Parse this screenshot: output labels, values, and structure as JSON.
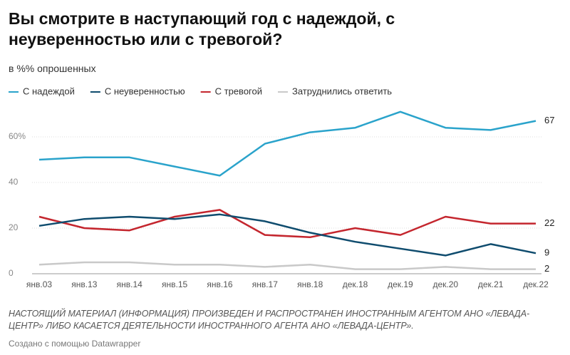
{
  "chart_data": {
    "type": "line",
    "title": "Вы смотрите в наступающий год с надеждой, с неуверенностью или с тревогой?",
    "subtitle": "в %% опрошенных",
    "note": "НАСТОЯЩИЙ МАТЕРИАЛ (ИНФОРМАЦИЯ) ПРОИЗВЕДЕН И РАСПРОСТРАНЕН ИНОСТРАННЫМ АГЕНТОМ АНО «ЛЕВАДА-ЦЕНТР» ЛИБО КАСАЕТСЯ ДЕЯТЕЛЬНОСТИ ИНОСТРАННОГО АГЕНТА АНО «ЛЕВАДА-ЦЕНТР».",
    "credit": "Создано с помощью Datawrapper",
    "categories": [
      "янв.03",
      "янв.13",
      "янв.14",
      "янв.15",
      "янв.16",
      "янв.17",
      "янв.18",
      "дек.18",
      "дек.19",
      "дек.20",
      "дек.21",
      "дек.22"
    ],
    "series": [
      {
        "name": "С надеждой",
        "color": "#2aa3cb",
        "values": [
          50,
          51,
          51,
          47,
          43,
          57,
          62,
          64,
          71,
          64,
          63,
          67
        ]
      },
      {
        "name": "С неуверенностью",
        "color": "#0f4c6e",
        "values": [
          21,
          24,
          25,
          24,
          26,
          23,
          18,
          14,
          11,
          8,
          13,
          9
        ]
      },
      {
        "name": "С тревогой",
        "color": "#c4262e",
        "values": [
          25,
          20,
          19,
          25,
          28,
          17,
          16,
          20,
          17,
          25,
          22,
          22
        ]
      },
      {
        "name": "Затруднились ответить",
        "color": "#c9c9c9",
        "values": [
          4,
          5,
          5,
          4,
          4,
          3,
          4,
          2,
          2,
          3,
          2,
          2
        ]
      }
    ],
    "ylim": [
      0,
      72
    ],
    "yticks": [
      0,
      20,
      40,
      {
        "value": 60,
        "label": "60%"
      }
    ],
    "grid": true
  }
}
